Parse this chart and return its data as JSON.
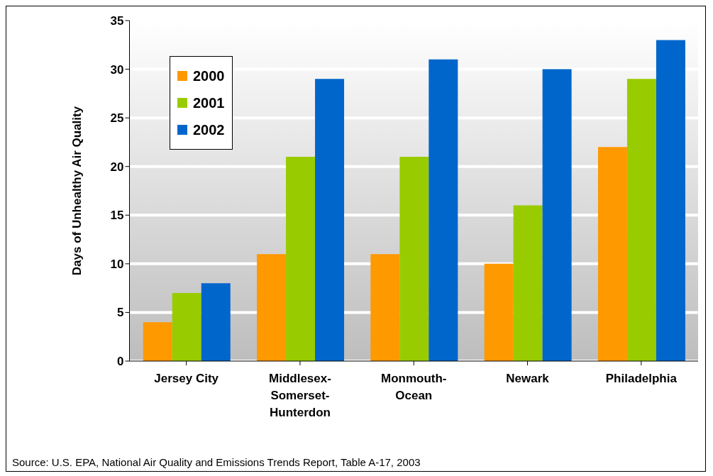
{
  "chart_data": {
    "type": "bar",
    "ylabel": "Days of Unhealthy Air Quality",
    "categories": [
      "Jersey City",
      "Middlesex-Somerset-Hunterdon",
      "Monmouth-Ocean",
      "Newark",
      "Philadelphia"
    ],
    "series": [
      {
        "name": "2000",
        "color": "#ff9900",
        "values": [
          4,
          11,
          11,
          10,
          22
        ]
      },
      {
        "name": "2001",
        "color": "#99cc00",
        "values": [
          7,
          21,
          21,
          16,
          29
        ]
      },
      {
        "name": "2002",
        "color": "#0066cc",
        "values": [
          8,
          29,
          31,
          30,
          33
        ]
      }
    ],
    "ylim": [
      0,
      35
    ],
    "yticks": [
      0,
      5,
      10,
      15,
      20,
      25,
      30,
      35
    ],
    "grid": "y",
    "legend": "top left",
    "annotations": [
      "Source: U.S. EPA, National Air Quality and Emissions Trends Report, Table A-17, 2003"
    ]
  }
}
